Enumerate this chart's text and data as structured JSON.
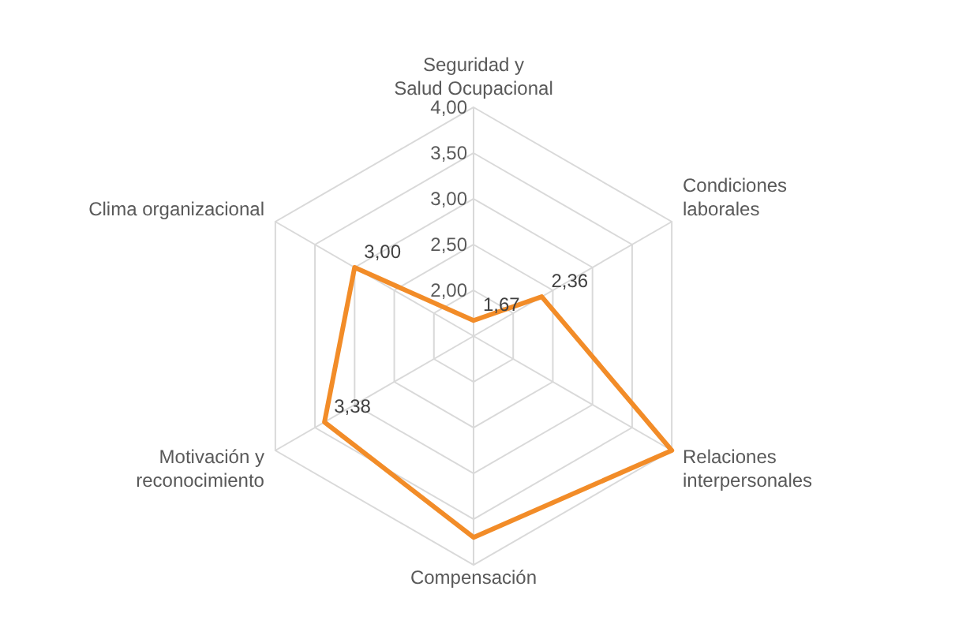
{
  "chart_data": {
    "type": "radar",
    "categories": [
      "Seguridad y Salud Ocupacional",
      "Condiciones  laborales",
      "Relaciones interpersonales",
      "Compensación",
      "Motivación y reconocimiento",
      "Clima organizacional"
    ],
    "series": [
      {
        "color": "#f28c28",
        "values": [
          1.67,
          2.36,
          4.0,
          3.7,
          3.38,
          3.0
        ],
        "value_labels": [
          "1,67",
          "2,36",
          null,
          null,
          "3,38",
          "3,00"
        ]
      }
    ],
    "ylim": [
      1.5,
      4
    ],
    "yticks": [
      {
        "value": 2,
        "label": "2,00"
      },
      {
        "value": 2.5,
        "label": "2,50"
      },
      {
        "value": 3,
        "label": "3,00"
      },
      {
        "value": 3.5,
        "label": "3,50"
      },
      {
        "value": 4,
        "label": "4,00"
      }
    ],
    "grid": true,
    "marker": "none"
  }
}
